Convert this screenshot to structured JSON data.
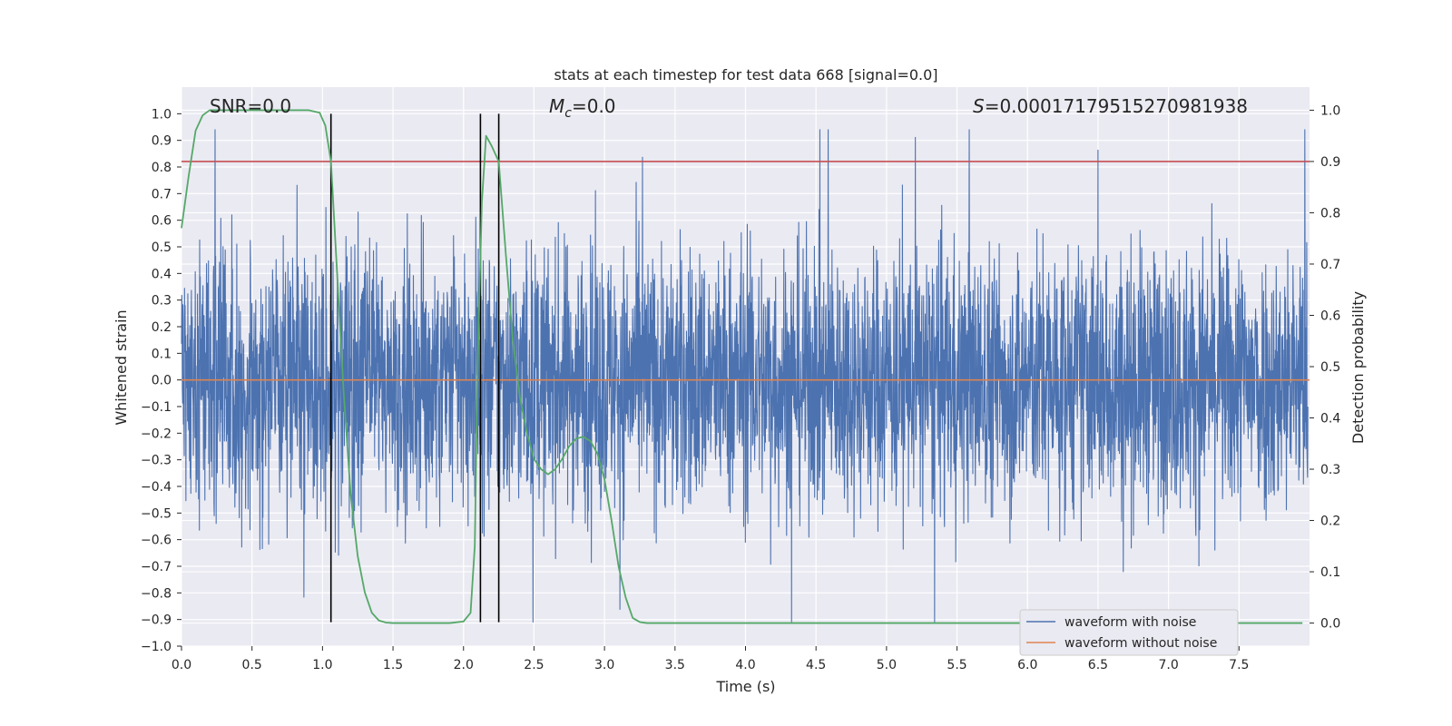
{
  "chart_data": {
    "type": "line",
    "title": "stats at each timestep for test data 668 [signal=0.0]",
    "xlabel": "Time (s)",
    "ylabel": "Whitened strain",
    "y2label": "Detection probability",
    "xlim": [
      0.0,
      8.0
    ],
    "ylim": [
      -1.0,
      1.1
    ],
    "y2lim": [
      -0.045,
      1.045
    ],
    "xticks": [
      "0.0",
      "0.5",
      "1.0",
      "1.5",
      "2.0",
      "2.5",
      "3.0",
      "3.5",
      "4.0",
      "4.5",
      "5.0",
      "5.5",
      "6.0",
      "6.5",
      "7.0",
      "7.5"
    ],
    "yticks": [
      "1.0",
      "0.9",
      "0.8",
      "0.7",
      "0.6",
      "0.5",
      "0.4",
      "0.3",
      "0.2",
      "0.1",
      "0.0",
      "-0.1",
      "-0.2",
      "-0.3",
      "-0.4",
      "-0.5",
      "-0.6",
      "-0.7",
      "-0.8",
      "-0.9",
      "-1.0"
    ],
    "y2ticks": [
      "1.0",
      "0.9",
      "0.8",
      "0.7",
      "0.6",
      "0.5",
      "0.4",
      "0.3",
      "0.2",
      "0.1",
      "0.0"
    ],
    "annotations": {
      "snr": "SNR=0.0",
      "mc_symbol": "M",
      "mc_sub": "c",
      "mc_value": "=0.0",
      "s_symbol": "S",
      "s_value": "=0.00017179515270981938"
    },
    "series": [
      {
        "name": "waveform with noise",
        "color": "#4c72b0",
        "axis": "left",
        "description": "dense noisy strain, mostly between -0.5 and 0.5 with spikes up to about 0.94 and down to about -0.91",
        "range": [
          -0.91,
          0.94
        ]
      },
      {
        "name": "waveform without noise",
        "color": "#dd8452",
        "axis": "left",
        "x": [
          0.0,
          8.0
        ],
        "values": [
          0.0,
          0.0
        ]
      },
      {
        "name": "detection probability",
        "color": "#55a868",
        "axis": "right",
        "x": [
          0.0,
          0.05,
          0.1,
          0.15,
          0.2,
          0.3,
          0.5,
          0.7,
          0.9,
          0.98,
          1.02,
          1.06,
          1.1,
          1.15,
          1.2,
          1.25,
          1.3,
          1.35,
          1.4,
          1.45,
          1.5,
          1.7,
          1.9,
          2.0,
          2.05,
          2.08,
          2.1,
          2.13,
          2.16,
          2.2,
          2.25,
          2.3,
          2.35,
          2.4,
          2.45,
          2.5,
          2.55,
          2.6,
          2.65,
          2.7,
          2.75,
          2.8,
          2.85,
          2.9,
          2.95,
          3.0,
          3.05,
          3.1,
          3.15,
          3.2,
          3.25,
          3.3,
          3.5,
          4.0,
          5.0,
          6.0,
          7.0,
          7.95
        ],
        "values": [
          0.77,
          0.87,
          0.96,
          0.99,
          1.0,
          1.0,
          1.0,
          1.0,
          1.0,
          0.995,
          0.97,
          0.9,
          0.7,
          0.45,
          0.25,
          0.13,
          0.06,
          0.02,
          0.005,
          0.001,
          0.0,
          0.0,
          0.0,
          0.003,
          0.02,
          0.15,
          0.5,
          0.82,
          0.95,
          0.93,
          0.9,
          0.72,
          0.55,
          0.44,
          0.37,
          0.32,
          0.3,
          0.29,
          0.3,
          0.32,
          0.345,
          0.36,
          0.363,
          0.355,
          0.33,
          0.28,
          0.2,
          0.11,
          0.05,
          0.01,
          0.002,
          0.0,
          0.0,
          0.0,
          0.0,
          0.0,
          0.0,
          0.0
        ]
      }
    ],
    "threshold_line": {
      "axis": "right",
      "value": 0.9,
      "color": "#c44e52"
    },
    "vertical_lines": {
      "x": [
        1.06,
        2.12,
        2.25
      ],
      "ymin": -0.91,
      "ymax": 1.0,
      "color": "#000000"
    },
    "legend": {
      "placement": "bottom-right",
      "entries": [
        "waveform with noise",
        "waveform without noise"
      ]
    },
    "grid": true,
    "colors": {
      "plot_background": "#eaeaf2",
      "grid": "#ffffff"
    }
  }
}
